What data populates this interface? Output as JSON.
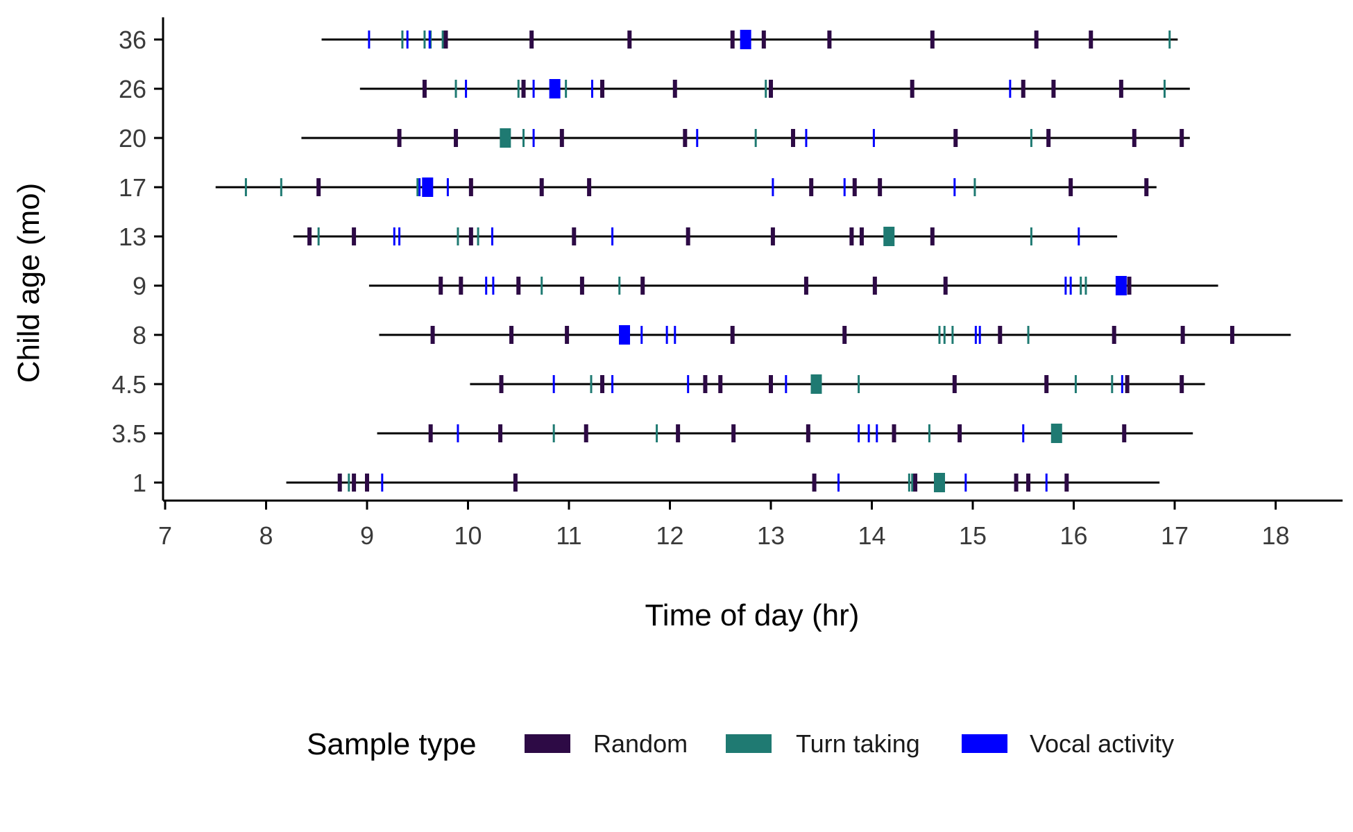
{
  "chart_data": {
    "type": "scatter",
    "xlabel": "Time of day (hr)",
    "ylabel": "Child age (mo)",
    "xlim": [
      7,
      18.7
    ],
    "x_ticks": [
      "7",
      "8",
      "9",
      "10",
      "11",
      "12",
      "13",
      "14",
      "15",
      "16",
      "17",
      "18"
    ],
    "grid": false,
    "legend": {
      "title": "Sample type",
      "placement": "bottom",
      "entries": [
        {
          "key": "random",
          "label": "Random",
          "color": "#2d0a45"
        },
        {
          "key": "turn",
          "label": "Turn taking",
          "color": "#1f7a72"
        },
        {
          "key": "vocal",
          "label": "Vocal activity",
          "color": "#0000ff"
        }
      ]
    },
    "rows": [
      {
        "age": "36",
        "range": [
          8.55,
          17.03
        ],
        "random": [
          9.78,
          10.63,
          11.6,
          12.62,
          12.93,
          13.58,
          14.6,
          15.63,
          16.17
        ],
        "turn": [
          9.35,
          9.57,
          9.63,
          9.75,
          16.95
        ],
        "vocal": [
          9.02,
          9.4,
          9.62,
          12.75
        ],
        "vocal_wide": [
          12.75
        ]
      },
      {
        "age": "26",
        "range": [
          8.93,
          17.15
        ],
        "random": [
          9.57,
          10.55,
          11.33,
          12.05,
          13.0,
          14.4,
          15.5,
          15.8,
          16.47
        ],
        "turn": [
          9.88,
          10.5,
          10.97,
          12.95,
          16.9
        ],
        "vocal": [
          9.98,
          10.65,
          11.23,
          15.37
        ],
        "vocal_wide": [
          10.86
        ]
      },
      {
        "age": "20",
        "range": [
          8.35,
          17.15
        ],
        "random": [
          9.32,
          9.88,
          10.93,
          12.15,
          13.22,
          14.83,
          15.75,
          16.6,
          17.07
        ],
        "turn": [
          10.55,
          12.85,
          15.58
        ],
        "vocal": [
          10.65,
          12.27,
          13.35,
          14.02
        ],
        "turn_wide": [
          10.37
        ]
      },
      {
        "age": "17",
        "range": [
          7.5,
          16.82
        ],
        "random": [
          8.52,
          10.03,
          10.73,
          11.2,
          13.4,
          13.83,
          14.08,
          15.97,
          16.72
        ],
        "turn": [
          7.8,
          8.15,
          9.5,
          15.02
        ],
        "vocal": [
          9.52,
          9.8,
          13.02,
          13.73,
          14.82
        ],
        "vocal_wide": [
          9.6
        ]
      },
      {
        "age": "13",
        "range": [
          8.27,
          16.43
        ],
        "random": [
          8.43,
          8.87,
          10.03,
          11.05,
          12.18,
          13.02,
          13.8,
          13.9,
          14.6
        ],
        "turn": [
          8.52,
          9.9,
          10.1,
          15.58
        ],
        "vocal": [
          9.27,
          9.32,
          10.24,
          11.43,
          16.05
        ],
        "turn_wide": [
          14.17
        ]
      },
      {
        "age": "9",
        "range": [
          9.02,
          17.43
        ],
        "random": [
          9.73,
          9.93,
          10.5,
          11.13,
          11.73,
          13.35,
          14.03,
          14.73,
          16.55
        ],
        "turn": [
          10.73,
          11.5,
          16.07,
          16.12
        ],
        "vocal": [
          10.18,
          10.25,
          15.92,
          15.97
        ],
        "vocal_wide": [
          16.47
        ]
      },
      {
        "age": "8",
        "range": [
          9.12,
          18.15
        ],
        "random": [
          9.65,
          10.43,
          10.98,
          12.62,
          13.73,
          15.27,
          16.4,
          17.08,
          17.57
        ],
        "turn": [
          14.67,
          14.72,
          14.8,
          15.55
        ],
        "vocal": [
          11.72,
          11.97,
          12.05,
          15.03,
          15.07
        ],
        "vocal_wide": [
          11.55
        ]
      },
      {
        "age": "4.5",
        "range": [
          10.02,
          17.3
        ],
        "random": [
          10.33,
          11.33,
          12.35,
          12.5,
          13.0,
          14.82,
          15.73,
          16.53,
          17.07
        ],
        "turn": [
          11.22,
          13.87,
          16.02,
          16.38
        ],
        "vocal": [
          10.85,
          11.43,
          12.18,
          13.15,
          16.48
        ],
        "turn_wide": [
          13.45
        ]
      },
      {
        "age": "3.5",
        "range": [
          9.1,
          17.18
        ],
        "random": [
          9.63,
          10.32,
          11.17,
          12.08,
          12.63,
          13.37,
          14.22,
          14.87,
          16.5
        ],
        "turn": [
          10.85,
          11.87,
          14.57
        ],
        "vocal": [
          9.9,
          13.87,
          13.97,
          14.05,
          15.5
        ],
        "turn_wide": [
          15.83
        ]
      },
      {
        "age": "1",
        "range": [
          8.2,
          16.85
        ],
        "random": [
          8.73,
          8.87,
          9.0,
          10.47,
          13.43,
          14.43,
          15.43,
          15.55,
          15.93
        ],
        "turn": [
          8.82,
          14.37,
          14.4
        ],
        "vocal": [
          9.15,
          13.67,
          14.93,
          15.73
        ],
        "turn_wide": [
          14.67
        ]
      }
    ]
  }
}
